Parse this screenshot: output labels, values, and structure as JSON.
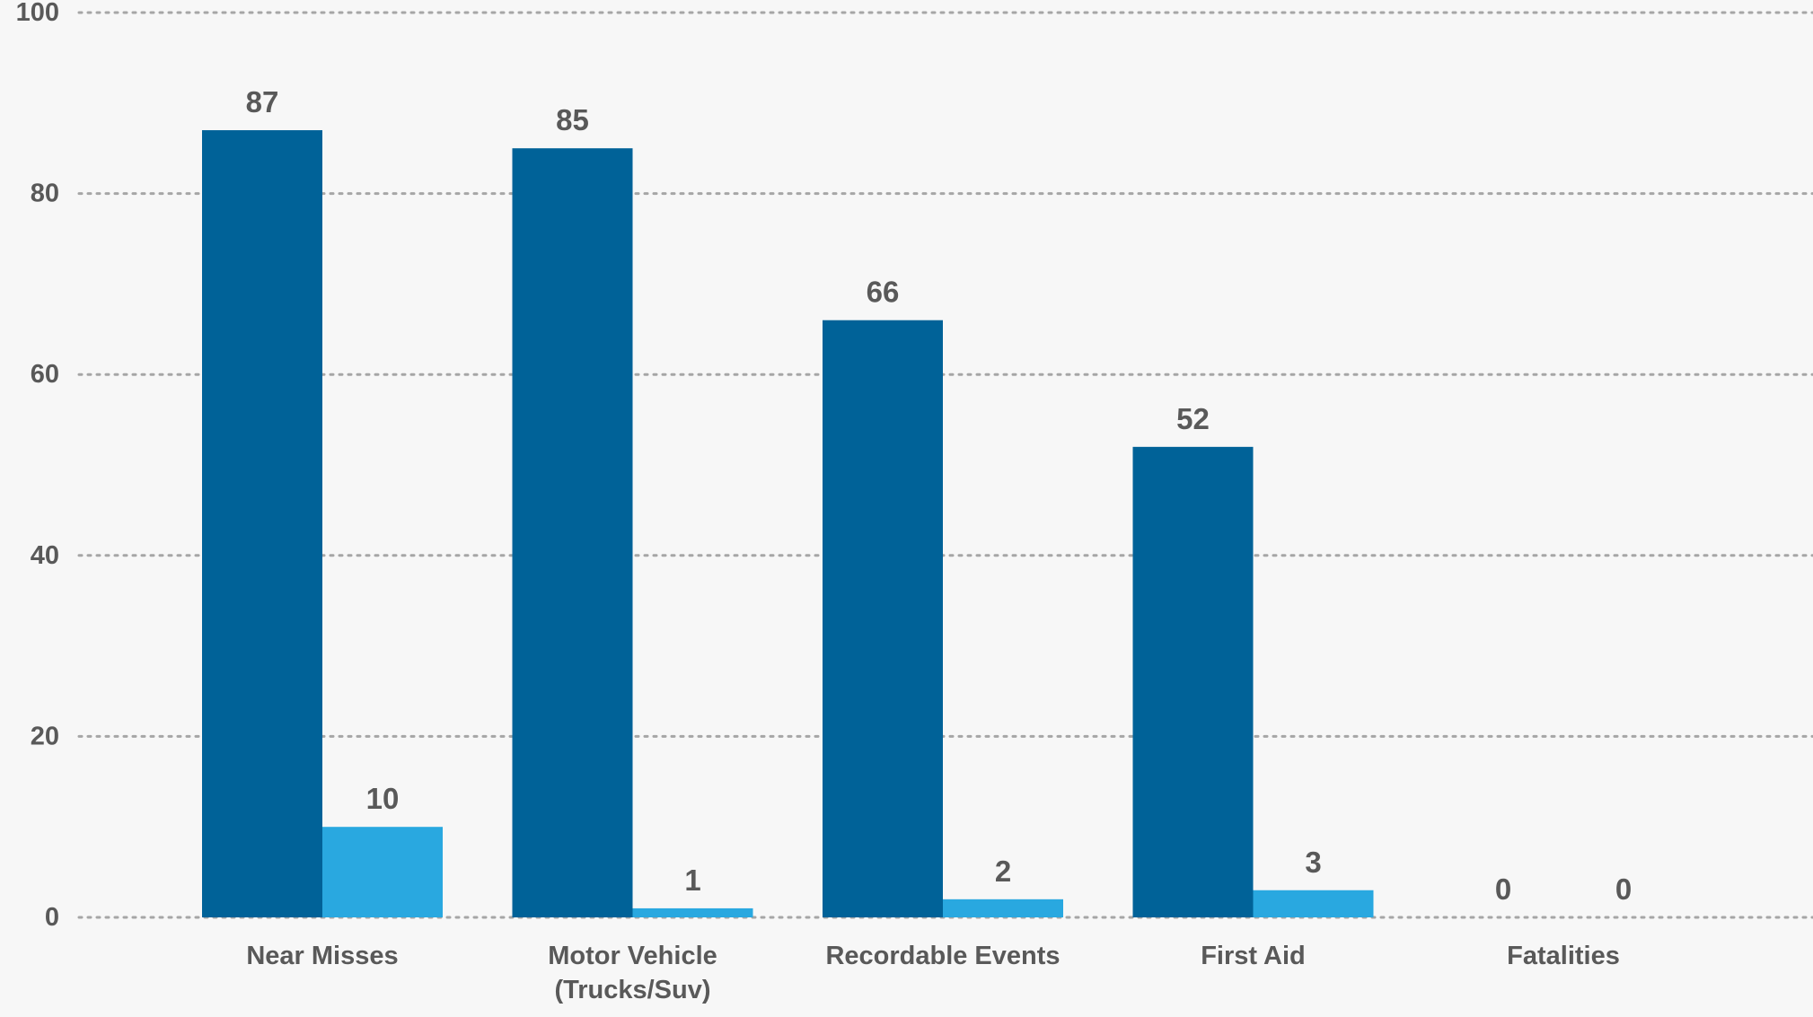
{
  "chart_data": {
    "type": "bar",
    "categories": [
      [
        "Near Misses"
      ],
      [
        "Motor Vehicle",
        "(Trucks/Suv)"
      ],
      [
        "Recordable Events"
      ],
      [
        "First Aid"
      ],
      [
        "Fatalities"
      ]
    ],
    "series": [
      {
        "values": [
          87,
          85,
          66,
          52,
          0
        ],
        "color": "#006298"
      },
      {
        "values": [
          10,
          1,
          2,
          3,
          0
        ],
        "color": "#29a8e0"
      }
    ],
    "ylim": [
      0,
      100
    ],
    "yticks": [
      0,
      20,
      40,
      60,
      80,
      100
    ],
    "grid": true,
    "legend": "none",
    "title": "",
    "xlabel": "",
    "ylabel": ""
  }
}
